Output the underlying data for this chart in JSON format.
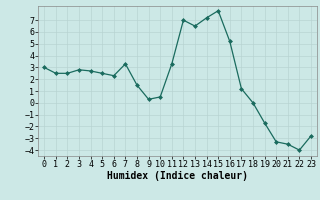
{
  "x": [
    0,
    1,
    2,
    3,
    4,
    5,
    6,
    7,
    8,
    9,
    10,
    11,
    12,
    13,
    14,
    15,
    16,
    17,
    18,
    19,
    20,
    21,
    22,
    23
  ],
  "y": [
    3,
    2.5,
    2.5,
    2.8,
    2.7,
    2.5,
    2.3,
    3.3,
    1.5,
    0.3,
    0.5,
    3.3,
    7.0,
    6.5,
    7.2,
    7.8,
    5.2,
    1.2,
    0.0,
    -1.7,
    -3.3,
    -3.5,
    -4.0,
    -2.8
  ],
  "xlabel": "Humidex (Indice chaleur)",
  "xlim": [
    -0.5,
    23.5
  ],
  "ylim": [
    -4.5,
    8.2
  ],
  "yticks": [
    -4,
    -3,
    -2,
    -1,
    0,
    1,
    2,
    3,
    4,
    5,
    6,
    7
  ],
  "xticks": [
    0,
    1,
    2,
    3,
    4,
    5,
    6,
    7,
    8,
    9,
    10,
    11,
    12,
    13,
    14,
    15,
    16,
    17,
    18,
    19,
    20,
    21,
    22,
    23
  ],
  "line_color": "#1a6b5e",
  "marker_color": "#1a6b5e",
  "bg_color": "#cce8e6",
  "grid_color": "#b8d4d2",
  "xlabel_fontsize": 7,
  "tick_fontsize": 6,
  "title": ""
}
